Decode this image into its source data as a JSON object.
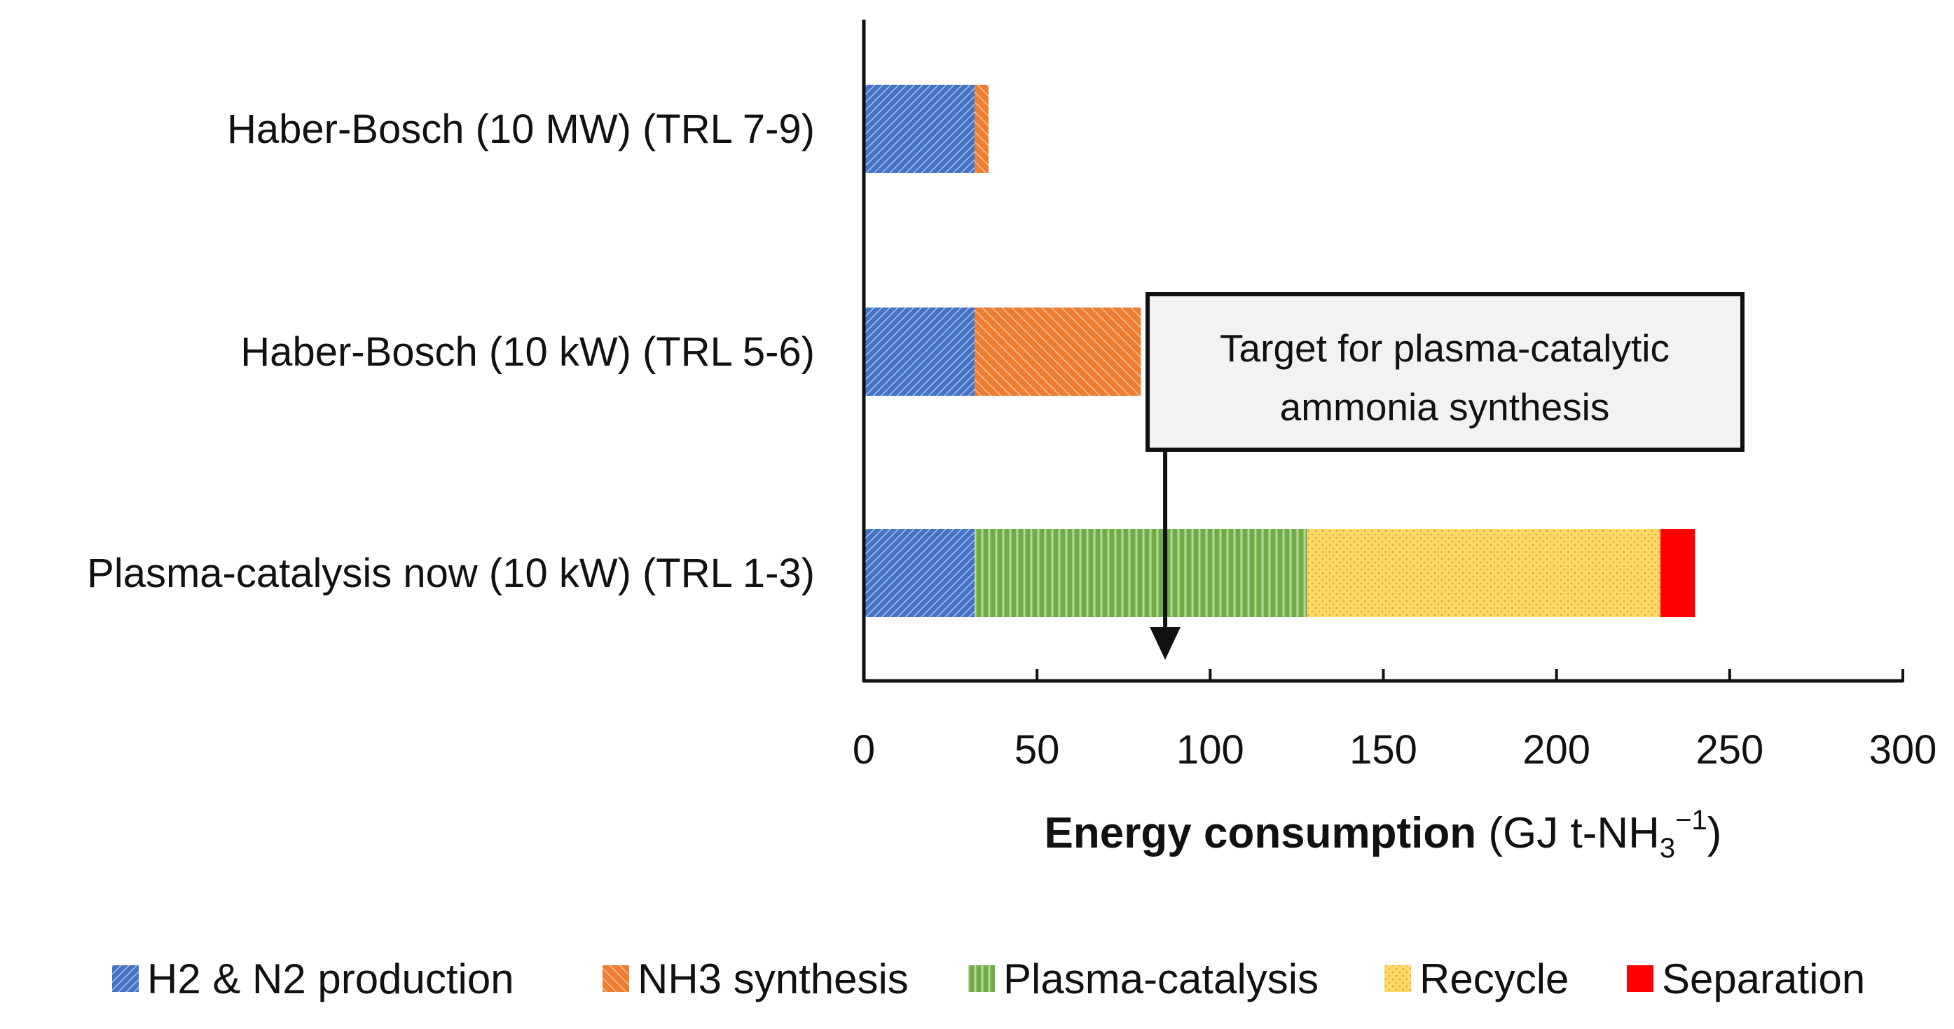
{
  "chart_data": {
    "type": "bar",
    "orientation": "horizontal",
    "stacked": true,
    "categories": [
      "Haber-Bosch (10 MW) (TRL 7-9)",
      "Haber-Bosch (10 kW) (TRL 5-6)",
      "Plasma-catalysis now (10 kW) (TRL 1-3)"
    ],
    "series": [
      {
        "name": "H2 & N2 production",
        "values": [
          32,
          32,
          32
        ],
        "color": "#4472C4",
        "pattern": "diagonal-dense"
      },
      {
        "name": "NH3 synthesis",
        "values": [
          4,
          48,
          0
        ],
        "color": "#ED7D31",
        "pattern": "diagonal"
      },
      {
        "name": "Plasma-catalysis",
        "values": [
          0,
          0,
          96
        ],
        "color": "#70AD47",
        "pattern": "vertical"
      },
      {
        "name": "Recycle",
        "values": [
          0,
          0,
          102
        ],
        "color": "#FFD966",
        "pattern": "dots"
      },
      {
        "name": "Separation",
        "values": [
          0,
          0,
          10
        ],
        "color": "#FF0000",
        "pattern": "solid"
      }
    ],
    "xlabel": {
      "bold": "Energy consumption",
      "unit_open": "(GJ t-NH",
      "unit_sub": "3",
      "unit_sup": "−1",
      "unit_close": ")"
    },
    "xlim": [
      0,
      300
    ],
    "xticks": [
      0,
      50,
      100,
      150,
      200,
      250,
      300
    ],
    "grid": false,
    "legend_position": "bottom",
    "annotation": {
      "lines": [
        "Target for plasma-catalytic",
        "ammonia synthesis"
      ],
      "arrow_x": 87
    }
  }
}
